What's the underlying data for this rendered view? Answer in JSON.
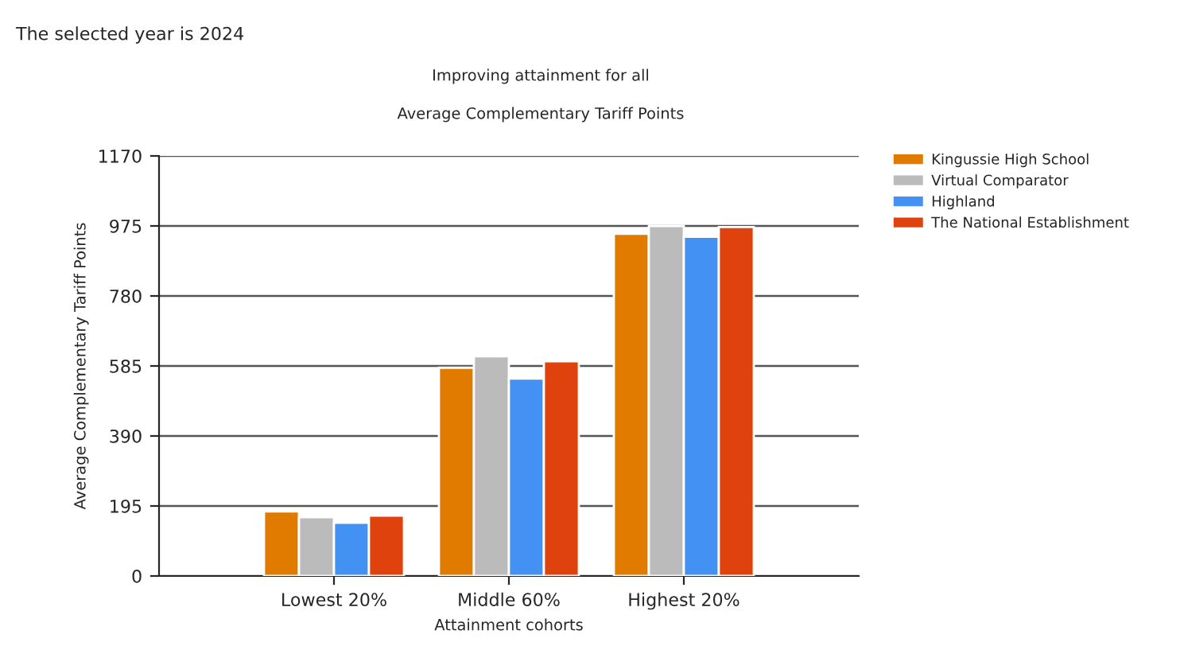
{
  "chart_data": {
    "type": "bar",
    "title": "Improving attainment for all",
    "subtitle": "Average Complementary Tariff Points",
    "xlabel": "Attainment cohorts",
    "ylabel": "Average Complementary Tariff Points",
    "annotations": [
      "The selected year is 2024"
    ],
    "categories": [
      "Lowest 20%",
      "Middle 60%",
      "Highest 20%"
    ],
    "series": [
      {
        "name": "Kingussie High School",
        "color": "#e07b00",
        "values": [
          180,
          580,
          953
        ]
      },
      {
        "name": "Virtual Comparator",
        "color": "#bbbbbb",
        "values": [
          164,
          612,
          975
        ]
      },
      {
        "name": "Highland",
        "color": "#4391f2",
        "values": [
          148,
          550,
          945
        ]
      },
      {
        "name": "The National Establishment",
        "color": "#e0420d",
        "values": [
          168,
          598,
          972
        ]
      }
    ],
    "ylim": [
      0,
      1170
    ],
    "yticks": [
      0,
      195,
      390,
      585,
      780,
      975,
      1170
    ],
    "grid": "y",
    "legend": "top right"
  }
}
